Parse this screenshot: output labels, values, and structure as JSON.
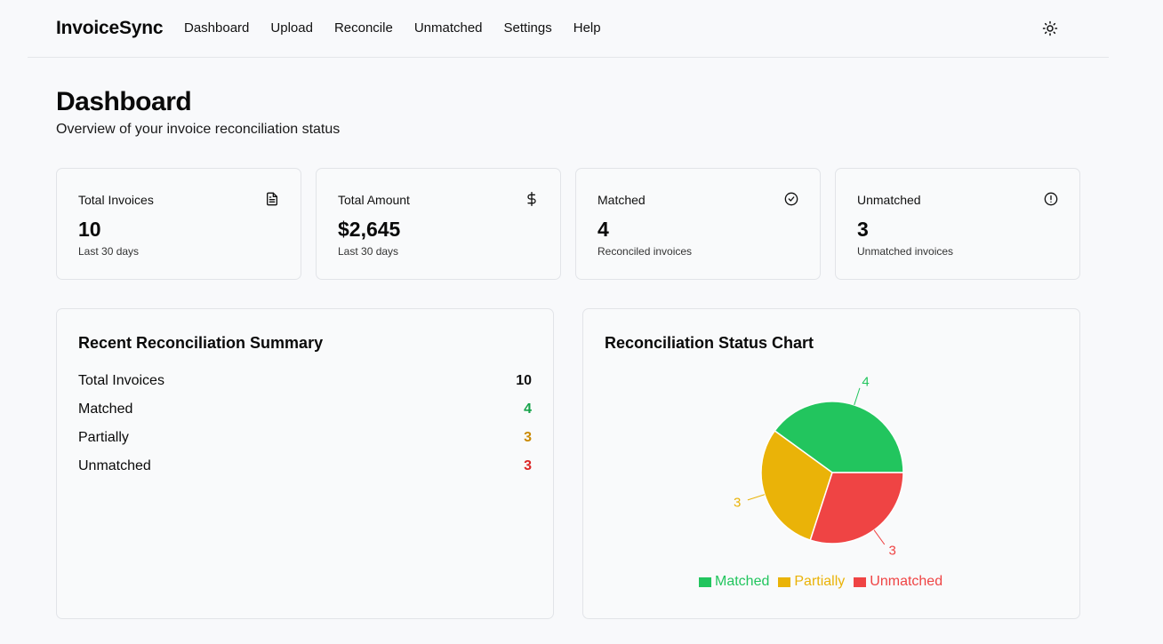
{
  "app": {
    "brand": "InvoiceSync",
    "nav": [
      "Dashboard",
      "Upload",
      "Reconcile",
      "Unmatched",
      "Settings",
      "Help"
    ]
  },
  "header": {
    "title": "Dashboard",
    "subtitle": "Overview of your invoice reconciliation status"
  },
  "stats": [
    {
      "label": "Total Invoices",
      "value": "10",
      "sub": "Last 30 days",
      "icon": "document-icon"
    },
    {
      "label": "Total Amount",
      "value": "$2,645",
      "sub": "Last 30 days",
      "icon": "dollar-icon"
    },
    {
      "label": "Matched",
      "value": "4",
      "sub": "Reconciled invoices",
      "icon": "check-circle-icon"
    },
    {
      "label": "Unmatched",
      "value": "3",
      "sub": "Unmatched invoices",
      "icon": "alert-circle-icon"
    }
  ],
  "summary": {
    "title": "Recent Reconciliation Summary",
    "rows": [
      {
        "label": "Total Invoices",
        "value": "10",
        "color": "#111111"
      },
      {
        "label": "Matched",
        "value": "4",
        "color": "#16a34a"
      },
      {
        "label": "Partially",
        "value": "3",
        "color": "#ca8a04"
      },
      {
        "label": "Unmatched",
        "value": "3",
        "color": "#dc2626"
      }
    ]
  },
  "chart_panel": {
    "title": "Reconciliation Status Chart"
  },
  "chart_data": {
    "type": "pie",
    "categories": [
      "Matched",
      "Partially",
      "Unmatched"
    ],
    "values": [
      4,
      3,
      3
    ],
    "colors": [
      "#22c55e",
      "#eab308",
      "#ef4444"
    ],
    "legend": "bottom"
  }
}
